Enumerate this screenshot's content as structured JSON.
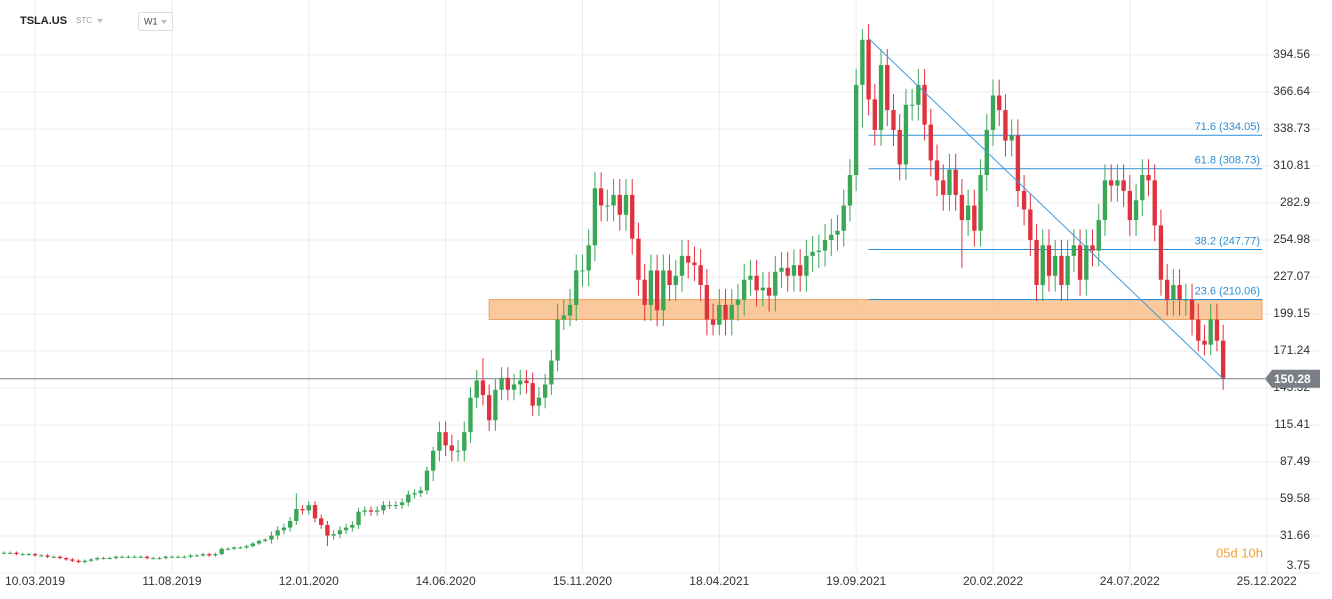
{
  "chart_data": {
    "type": "candlestick",
    "title": "TSLA.US",
    "subtitle": "STC",
    "timeframe": "W1",
    "countdown": "05d 10h",
    "last_price": 150.28,
    "up_color": "#3aa757",
    "down_color": "#e0313f",
    "grid": true,
    "xlim": [
      -0.64,
      213.5
    ],
    "ylim": [
      3.75,
      436.05
    ],
    "xticks": [
      {
        "value": 5,
        "label": "10.03.2019"
      },
      {
        "value": 27,
        "label": "11.08.2019"
      },
      {
        "value": 49,
        "label": "12.01.2020"
      },
      {
        "value": 71,
        "label": "14.06.2020"
      },
      {
        "value": 93,
        "label": "15.11.2020"
      },
      {
        "value": 115,
        "label": "18.04.2021"
      },
      {
        "value": 137,
        "label": "19.09.2021"
      },
      {
        "value": 159,
        "label": "20.02.2022"
      },
      {
        "value": 181,
        "label": "24.07.2022"
      },
      {
        "value": 203,
        "label": "25.12.2022"
      }
    ],
    "yticks": [
      3.75,
      31.66,
      59.58,
      87.49,
      115.41,
      143.32,
      171.24,
      199.15,
      227.07,
      254.98,
      282.9,
      310.81,
      338.73,
      366.64,
      394.56
    ],
    "fibonacci": {
      "start": 139,
      "color": "#2b8fd8",
      "levels": [
        {
          "value": 334.05,
          "label": "71.6 (334.05)"
        },
        {
          "value": 308.73,
          "label": "61.8 (308.73)"
        },
        {
          "value": 247.77,
          "label": "38.2 (247.77)"
        },
        {
          "value": 210.06,
          "label": "23.6 (210.06)"
        }
      ]
    },
    "zone": {
      "start": 78,
      "from": 195,
      "to": 210,
      "color": "#f9c08a"
    },
    "trendline": {
      "x": [
        139,
        196
      ],
      "y": [
        407,
        150.28
      ],
      "color": "#3d9be0"
    },
    "open": [
      19,
      19,
      19,
      18,
      18,
      18,
      17,
      17,
      16,
      16,
      15,
      14,
      13,
      12,
      13,
      14,
      15,
      15,
      15,
      16,
      16,
      16,
      16,
      16,
      15,
      15,
      15,
      16,
      16,
      16,
      16,
      17,
      17,
      18,
      17,
      18,
      22,
      22,
      23,
      23,
      24,
      26,
      28,
      29,
      32,
      36,
      38,
      43,
      52,
      51,
      55,
      45,
      40,
      32,
      33,
      36,
      38,
      40,
      50,
      51,
      50,
      51,
      55,
      55,
      55,
      57,
      63,
      64,
      66,
      81,
      96,
      110,
      100,
      96,
      96,
      110,
      136,
      149,
      138,
      119,
      142,
      151,
      142,
      146,
      149,
      147,
      130,
      136,
      146,
      164,
      195,
      198,
      206,
      232,
      232,
      251,
      294,
      281,
      281,
      289,
      274,
      289,
      256,
      225,
      206,
      232,
      202,
      232,
      221,
      228,
      243,
      238,
      236,
      221,
      195,
      191,
      206,
      195,
      206,
      210,
      225,
      228,
      217,
      219,
      213,
      231,
      234,
      228,
      236,
      228,
      243,
      246,
      247,
      255,
      259,
      262,
      281,
      304,
      372,
      406,
      361,
      338,
      387,
      353,
      338,
      312,
      357,
      357,
      372,
      342,
      315,
      300,
      289,
      308,
      289,
      270,
      281,
      262,
      304,
      338,
      364,
      353,
      330,
      334,
      292,
      278,
      255,
      221,
      251,
      228,
      243,
      221,
      243,
      251,
      225,
      251,
      247,
      270,
      300,
      296,
      300,
      292,
      270,
      285,
      304,
      300,
      266,
      225,
      210,
      221,
      210,
      210,
      195,
      179,
      176,
      195,
      179
    ],
    "high": [
      20,
      20,
      20,
      19,
      19,
      19,
      18,
      18,
      17,
      17,
      16,
      15,
      14,
      14,
      15,
      16,
      16,
      16,
      17,
      17,
      17,
      17,
      17,
      17,
      16,
      16,
      17,
      17,
      17,
      17,
      18,
      18,
      19,
      19,
      19,
      23,
      23,
      24,
      24,
      25,
      27,
      29,
      30,
      35,
      39,
      41,
      46,
      64,
      55,
      58,
      58,
      48,
      43,
      36,
      39,
      41,
      43,
      53,
      54,
      54,
      54,
      58,
      58,
      58,
      60,
      66,
      67,
      69,
      84,
      99,
      118,
      118,
      108,
      104,
      118,
      144,
      157,
      166,
      146,
      150,
      159,
      159,
      154,
      157,
      157,
      155,
      144,
      154,
      172,
      207,
      210,
      218,
      244,
      244,
      263,
      306,
      306,
      293,
      301,
      301,
      301,
      301,
      268,
      237,
      244,
      244,
      244,
      244,
      240,
      255,
      255,
      250,
      248,
      233,
      207,
      218,
      218,
      218,
      222,
      237,
      240,
      240,
      231,
      231,
      243,
      246,
      246,
      248,
      248,
      255,
      258,
      259,
      267,
      271,
      274,
      293,
      316,
      384,
      414,
      418,
      373,
      399,
      399,
      365,
      350,
      369,
      369,
      384,
      384,
      354,
      327,
      312,
      320,
      320,
      301,
      293,
      293,
      316,
      350,
      376,
      376,
      365,
      346,
      346,
      304,
      290,
      267,
      263,
      263,
      255,
      255,
      255,
      263,
      263,
      263,
      263,
      282,
      312,
      312,
      312,
      312,
      304,
      297,
      316,
      316,
      312,
      278,
      237,
      233,
      233,
      222,
      222,
      207,
      191,
      207,
      207,
      191
    ],
    "low": [
      18,
      18,
      17,
      17,
      17,
      16,
      16,
      15,
      15,
      14,
      13,
      12,
      11,
      11,
      12,
      13,
      14,
      14,
      14,
      15,
      15,
      15,
      15,
      14,
      14,
      14,
      14,
      15,
      15,
      15,
      15,
      16,
      16,
      16,
      16,
      17,
      21,
      21,
      22,
      22,
      23,
      25,
      27,
      26,
      29,
      33,
      35,
      40,
      48,
      48,
      42,
      37,
      24,
      29,
      30,
      33,
      35,
      37,
      47,
      47,
      47,
      48,
      52,
      52,
      52,
      54,
      60,
      61,
      63,
      73,
      88,
      92,
      88,
      88,
      88,
      102,
      128,
      130,
      111,
      111,
      134,
      134,
      134,
      138,
      139,
      122,
      122,
      128,
      138,
      156,
      187,
      190,
      194,
      220,
      220,
      239,
      269,
      269,
      269,
      262,
      262,
      244,
      213,
      194,
      194,
      190,
      190,
      209,
      209,
      216,
      226,
      224,
      209,
      183,
      183,
      183,
      183,
      183,
      194,
      198,
      213,
      205,
      205,
      201,
      201,
      219,
      216,
      216,
      216,
      216,
      231,
      234,
      235,
      243,
      247,
      250,
      269,
      292,
      340,
      349,
      326,
      326,
      341,
      326,
      300,
      300,
      345,
      345,
      330,
      303,
      288,
      277,
      277,
      277,
      234,
      258,
      250,
      250,
      292,
      326,
      341,
      318,
      318,
      280,
      266,
      243,
      209,
      209,
      216,
      216,
      209,
      209,
      231,
      213,
      213,
      235,
      235,
      258,
      284,
      284,
      280,
      258,
      258,
      273,
      288,
      254,
      213,
      198,
      198,
      198,
      198,
      183,
      171,
      168,
      168,
      171,
      142
    ],
    "close": [
      19,
      19,
      18,
      18,
      18,
      17,
      17,
      16,
      16,
      15,
      14,
      13,
      12,
      13,
      14,
      15,
      15,
      15,
      16,
      16,
      16,
      16,
      16,
      15,
      15,
      15,
      16,
      16,
      16,
      16,
      17,
      17,
      18,
      17,
      18,
      22,
      22,
      23,
      23,
      24,
      26,
      28,
      29,
      32,
      36,
      38,
      43,
      52,
      51,
      55,
      45,
      40,
      32,
      33,
      36,
      38,
      40,
      50,
      51,
      50,
      51,
      55,
      55,
      55,
      57,
      63,
      64,
      66,
      81,
      96,
      110,
      100,
      96,
      96,
      110,
      136,
      149,
      138,
      119,
      142,
      151,
      142,
      146,
      149,
      147,
      130,
      136,
      146,
      164,
      195,
      198,
      206,
      232,
      232,
      251,
      294,
      281,
      281,
      289,
      274,
      289,
      256,
      225,
      206,
      232,
      202,
      232,
      221,
      228,
      243,
      238,
      236,
      221,
      195,
      191,
      206,
      195,
      206,
      210,
      225,
      228,
      217,
      219,
      213,
      231,
      234,
      228,
      236,
      228,
      243,
      246,
      247,
      255,
      259,
      262,
      281,
      304,
      372,
      406,
      361,
      338,
      387,
      353,
      338,
      312,
      357,
      357,
      372,
      342,
      315,
      300,
      289,
      308,
      289,
      270,
      281,
      262,
      304,
      338,
      364,
      353,
      330,
      334,
      292,
      278,
      255,
      221,
      251,
      228,
      243,
      221,
      243,
      251,
      225,
      251,
      247,
      270,
      300,
      296,
      300,
      292,
      270,
      285,
      304,
      300,
      266,
      225,
      210,
      221,
      210,
      210,
      195,
      179,
      176,
      195,
      179,
      150.28
    ]
  }
}
